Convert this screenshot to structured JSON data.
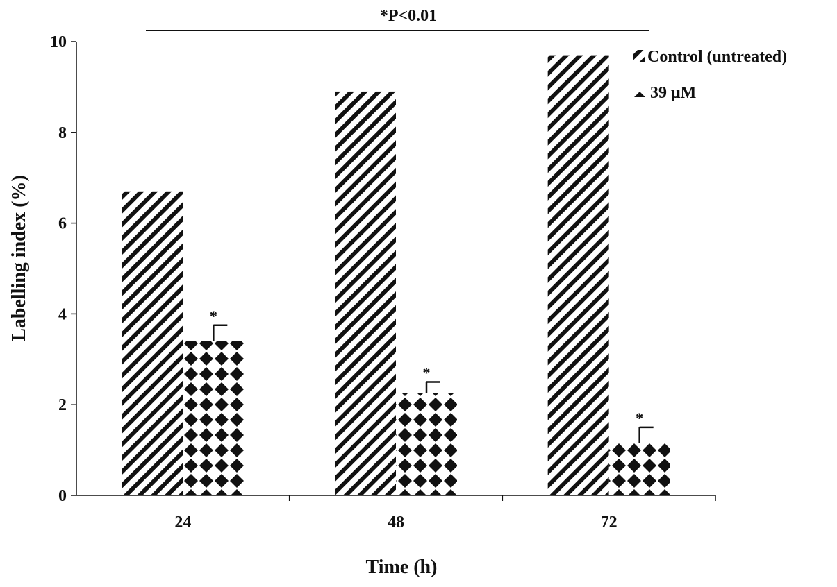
{
  "chart_data": {
    "type": "bar",
    "significance_label": "*P<0.01",
    "xlabel": "Time (h)",
    "ylabel": "Labelling index (%)",
    "ylim": [
      0,
      10
    ],
    "yticks": [
      "0",
      "2",
      "4",
      "6",
      "8",
      "10"
    ],
    "categories": [
      "24",
      "48",
      "72"
    ],
    "legend_position": "top-right",
    "grid": false,
    "series": [
      {
        "name": "Control (untreated)",
        "pattern": "diagonal-hatch",
        "values": [
          6.7,
          8.9,
          9.7
        ],
        "errors": [
          0,
          0,
          0
        ],
        "marks": [
          "",
          "",
          ""
        ]
      },
      {
        "name": "39 μM",
        "pattern": "diamond-checker",
        "values": [
          3.4,
          2.25,
          1.15
        ],
        "errors": [
          0.35,
          0.25,
          0.35
        ],
        "marks": [
          "*",
          "*",
          "*"
        ]
      }
    ]
  }
}
